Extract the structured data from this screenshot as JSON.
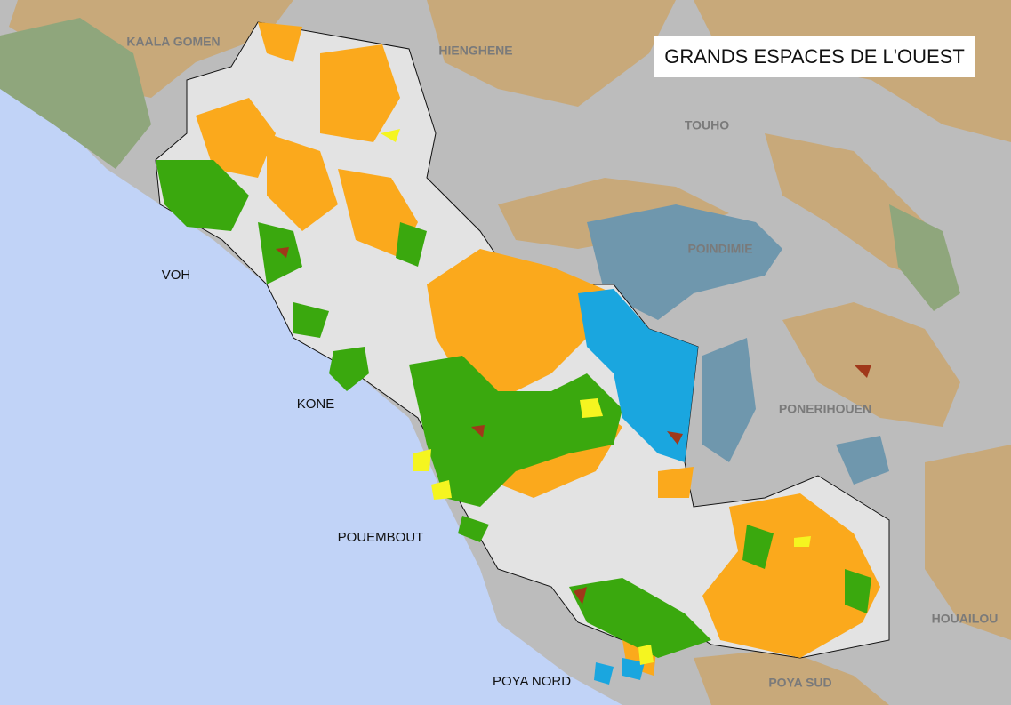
{
  "title": "GRANDS ESPACES DE L'OUEST",
  "labels": {
    "outside": [
      "KAALA GOMEN",
      "HIENGHENE",
      "TOUHO",
      "POINDIMIE",
      "PONERIHOUEN",
      "HOUAILOU",
      "POYA SUD"
    ],
    "inside": [
      "VOH",
      "KONE",
      "POUEMBOUT",
      "POYA NORD"
    ]
  }
}
